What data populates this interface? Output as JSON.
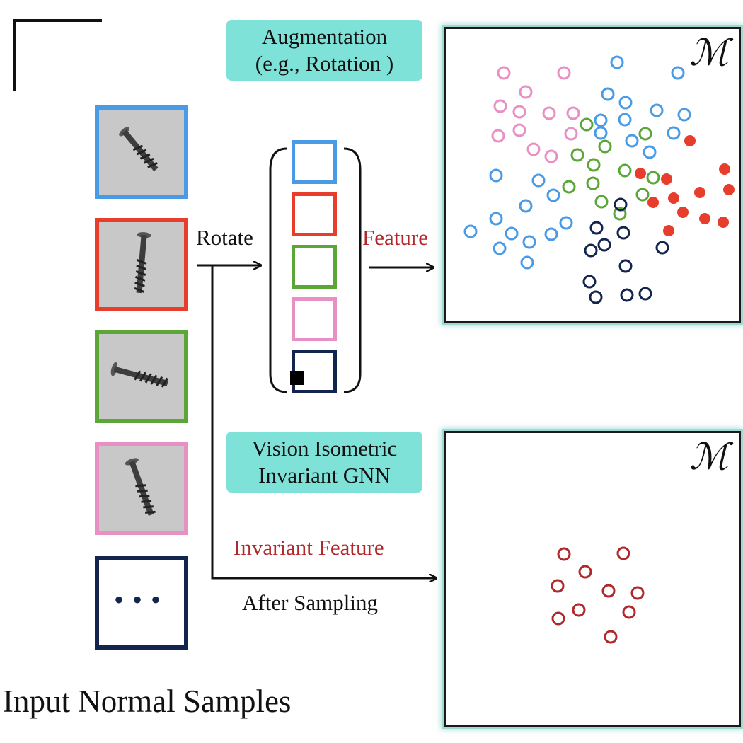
{
  "labels": {
    "augmentation_line1": "Augmentation",
    "augmentation_line2": "(e.g., Rotation )",
    "rotate": "Rotate",
    "feature": "Feature",
    "vision_line1": "Vision Isometric",
    "vision_line2": "Invariant GNN",
    "invariant_feature": "Invariant Feature",
    "after_sampling": "After Sampling",
    "input_normal_samples": "Input Normal Samples",
    "manifold_symbol": "ℳ",
    "ellipsis": "•••"
  },
  "colors": {
    "blue": "#4a9be6",
    "red": "#e63d2c",
    "green": "#5aa637",
    "pink": "#e88fc4",
    "navy": "#13254e",
    "dark_red": "#b0282a",
    "teal_tag": "#7fe2d9"
  },
  "samples": [
    {
      "color": "blue",
      "icon": "screw-icon"
    },
    {
      "color": "red",
      "icon": "screw-icon"
    },
    {
      "color": "green",
      "icon": "screw-icon"
    },
    {
      "color": "pink",
      "icon": "screw-icon"
    },
    {
      "color": "navy",
      "icon": "ellipsis"
    }
  ],
  "rotation_stack": [
    "blue",
    "red",
    "green",
    "pink",
    "navy"
  ]
}
